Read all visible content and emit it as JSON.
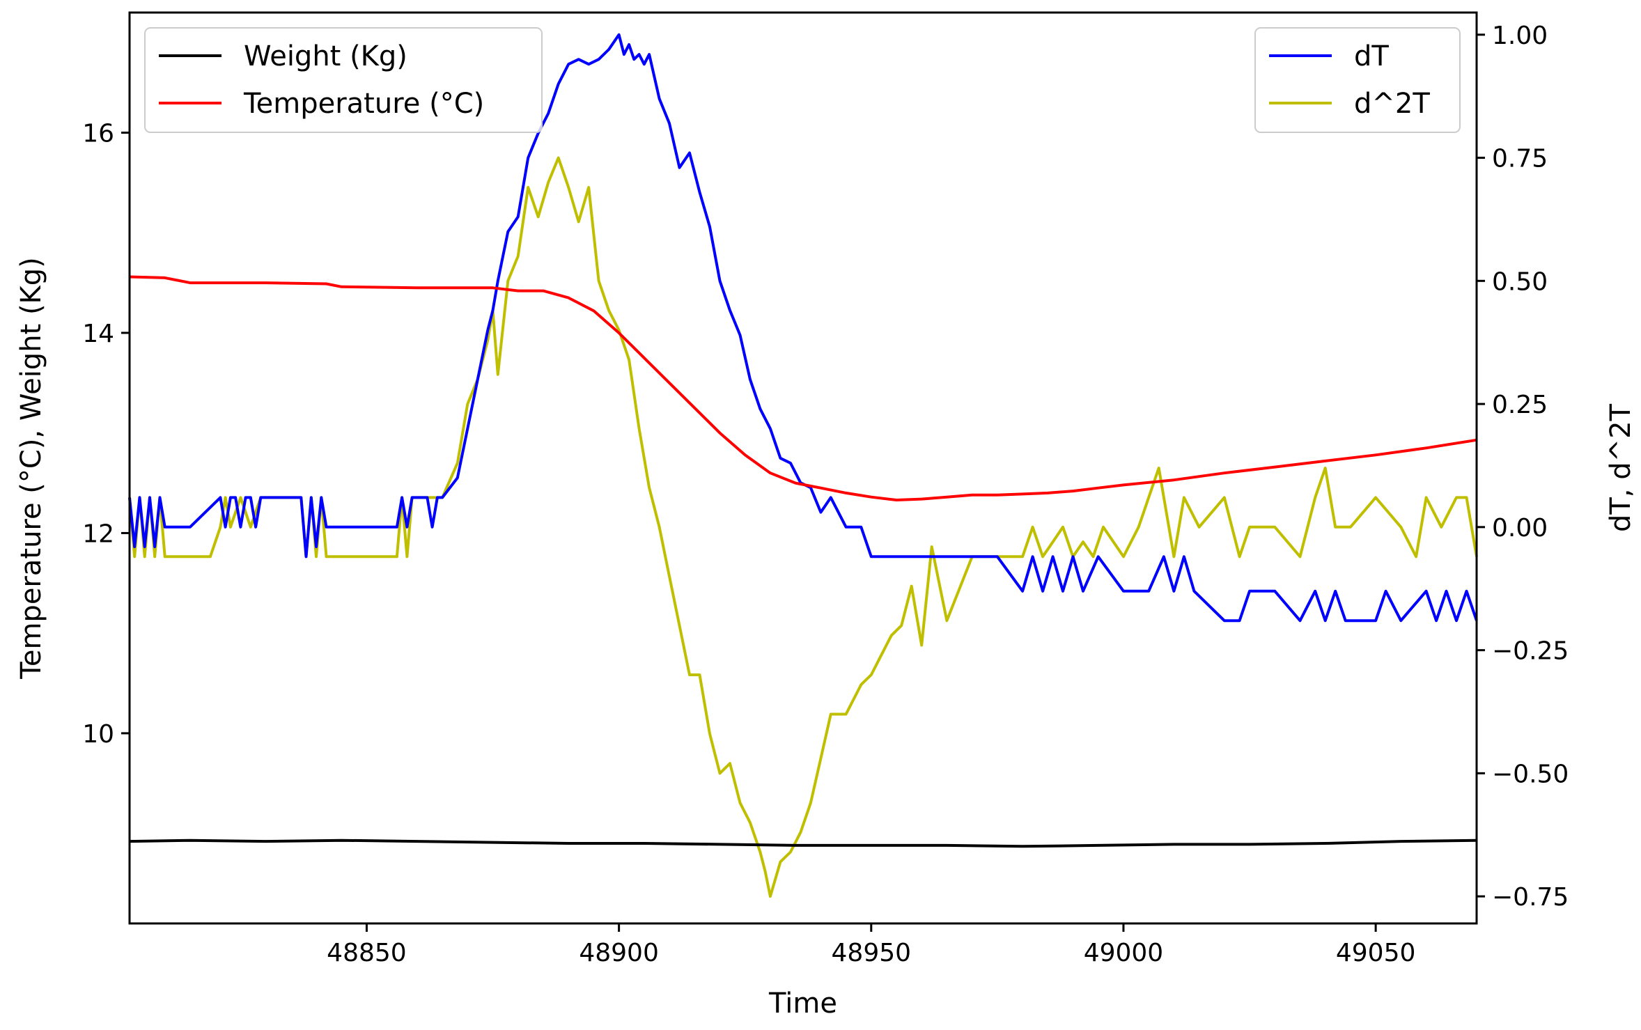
{
  "chart_data": {
    "type": "line",
    "title": "",
    "xlabel": "Time",
    "ylabel_left": "Temperature (°C), Weight (Kg)",
    "ylabel_right": "dT, d^2T",
    "xlim": [
      48803,
      49070
    ],
    "ylim_left": [
      8.1,
      17.2
    ],
    "ylim_right": [
      -0.805,
      1.045
    ],
    "x_ticks": [
      48850,
      48900,
      48950,
      49000,
      49050
    ],
    "x_tick_labels": [
      "48850",
      "48900",
      "48950",
      "49000",
      "49050"
    ],
    "y_left_ticks": [
      10,
      12,
      14,
      16
    ],
    "y_left_tick_labels": [
      "10",
      "12",
      "14",
      "16"
    ],
    "y_right_ticks": [
      -0.75,
      -0.5,
      -0.25,
      0.0,
      0.25,
      0.5,
      0.75,
      1.0
    ],
    "y_right_tick_labels": [
      "−0.75",
      "−0.50",
      "−0.25",
      "0.00",
      "0.25",
      "0.50",
      "0.75",
      "1.00"
    ],
    "grid": false,
    "legend_left": {
      "placement": "top-left",
      "entries": [
        {
          "label": "Weight (Kg)",
          "color": "#000000"
        },
        {
          "label": "Temperature (°C)",
          "color": "#ff0000"
        }
      ]
    },
    "legend_right": {
      "placement": "top-right",
      "entries": [
        {
          "label": "dT",
          "color": "#0000ff"
        },
        {
          "label": "d^2T",
          "color": "#bfbf00"
        }
      ]
    },
    "series": [
      {
        "name": "Weight (Kg)",
        "axis": "left",
        "color": "#000000",
        "x": [
          48803,
          48815,
          48830,
          48845,
          48860,
          48875,
          48890,
          48905,
          48920,
          48935,
          48950,
          48965,
          48980,
          48995,
          49010,
          49025,
          49040,
          49055,
          49070
        ],
        "y": [
          8.92,
          8.93,
          8.92,
          8.93,
          8.92,
          8.91,
          8.9,
          8.9,
          8.89,
          8.88,
          8.88,
          8.88,
          8.87,
          8.88,
          8.89,
          8.89,
          8.9,
          8.92,
          8.93
        ]
      },
      {
        "name": "Temperature (°C)",
        "axis": "left",
        "color": "#ff0000",
        "x": [
          48803,
          48810,
          48815,
          48830,
          48842,
          48845,
          48860,
          48875,
          48880,
          48885,
          48890,
          48895,
          48900,
          48905,
          48910,
          48915,
          48920,
          48925,
          48930,
          48935,
          48940,
          48945,
          48950,
          48955,
          48960,
          48965,
          48970,
          48975,
          48980,
          48985,
          48990,
          48995,
          49000,
          49010,
          49020,
          49030,
          49040,
          49050,
          49060,
          49070
        ],
        "y": [
          14.56,
          14.55,
          14.5,
          14.5,
          14.49,
          14.46,
          14.45,
          14.45,
          14.42,
          14.42,
          14.35,
          14.22,
          14.0,
          13.75,
          13.5,
          13.25,
          13.0,
          12.78,
          12.6,
          12.5,
          12.45,
          12.4,
          12.36,
          12.33,
          12.34,
          12.36,
          12.38,
          12.38,
          12.39,
          12.4,
          12.42,
          12.45,
          12.48,
          12.53,
          12.6,
          12.66,
          12.72,
          12.78,
          12.85,
          12.93
        ]
      },
      {
        "name": "dT",
        "axis": "right",
        "color": "#0000ff",
        "x": [
          48803,
          48804,
          48805,
          48806,
          48807,
          48808,
          48809,
          48810,
          48815,
          48821,
          48822,
          48823,
          48824,
          48825,
          48826,
          48827,
          48828,
          48829,
          48830,
          48837,
          48838,
          48839,
          48840,
          48841,
          48842,
          48856,
          48857,
          48858,
          48859,
          48860,
          48861,
          48862,
          48863,
          48864,
          48865,
          48868,
          48870,
          48872,
          48874,
          48875,
          48876,
          48878,
          48880,
          48882,
          48884,
          48886,
          48888,
          48890,
          48892,
          48894,
          48896,
          48898,
          48900,
          48901,
          48902,
          48903,
          48904,
          48905,
          48906,
          48908,
          48910,
          48912,
          48914,
          48916,
          48918,
          48920,
          48922,
          48924,
          48926,
          48928,
          48930,
          48932,
          48934,
          48936,
          48938,
          48940,
          48942,
          48945,
          48948,
          48950,
          48952,
          48954,
          48956,
          48958,
          48960,
          48962,
          48964,
          48970,
          48975,
          48980,
          48982,
          48984,
          48986,
          48988,
          48990,
          48992,
          48995,
          49000,
          49005,
          49008,
          49010,
          49012,
          49014,
          49020,
          49023,
          49025,
          49030,
          49035,
          49038,
          49040,
          49042,
          49044,
          49050,
          49052,
          49055,
          49060,
          49062,
          49064,
          49066,
          49068,
          49070
        ],
        "y": [
          0.06,
          -0.04,
          0.06,
          -0.04,
          0.06,
          -0.04,
          0.06,
          0.0,
          0.0,
          0.06,
          0.0,
          0.06,
          0.06,
          0.0,
          0.06,
          0.06,
          0.0,
          0.06,
          0.06,
          0.06,
          -0.06,
          0.06,
          -0.04,
          0.06,
          0.0,
          0.0,
          0.06,
          0.0,
          0.06,
          0.06,
          0.06,
          0.06,
          0.0,
          0.06,
          0.06,
          0.1,
          0.2,
          0.3,
          0.4,
          0.44,
          0.5,
          0.6,
          0.63,
          0.75,
          0.8,
          0.84,
          0.9,
          0.94,
          0.95,
          0.94,
          0.95,
          0.97,
          1.0,
          0.96,
          0.98,
          0.95,
          0.96,
          0.94,
          0.96,
          0.87,
          0.82,
          0.73,
          0.76,
          0.68,
          0.61,
          0.5,
          0.44,
          0.39,
          0.3,
          0.24,
          0.2,
          0.14,
          0.13,
          0.09,
          0.08,
          0.03,
          0.06,
          0.0,
          0.0,
          -0.06,
          -0.06,
          -0.06,
          -0.06,
          -0.06,
          -0.06,
          -0.06,
          -0.06,
          -0.06,
          -0.06,
          -0.13,
          -0.06,
          -0.13,
          -0.06,
          -0.13,
          -0.06,
          -0.13,
          -0.06,
          -0.13,
          -0.13,
          -0.06,
          -0.13,
          -0.06,
          -0.13,
          -0.19,
          -0.19,
          -0.13,
          -0.13,
          -0.19,
          -0.13,
          -0.19,
          -0.13,
          -0.19,
          -0.19,
          -0.13,
          -0.19,
          -0.13,
          -0.19,
          -0.13,
          -0.19,
          -0.13,
          -0.19
        ]
      },
      {
        "name": "d^2T",
        "axis": "right",
        "color": "#bfbf00",
        "x": [
          48803,
          48804,
          48805,
          48806,
          48807,
          48808,
          48809,
          48810,
          48815,
          48819,
          48821,
          48822,
          48823,
          48825,
          48827,
          48829,
          48831,
          48837,
          48838,
          48839,
          48840,
          48841,
          48842,
          48856,
          48857,
          48858,
          48859,
          48860,
          48862,
          48865,
          48868,
          48870,
          48872,
          48874,
          48875,
          48876,
          48878,
          48880,
          48882,
          48884,
          48886,
          48888,
          48890,
          48892,
          48894,
          48896,
          48898,
          48900,
          48902,
          48904,
          48906,
          48908,
          48910,
          48912,
          48914,
          48916,
          48918,
          48920,
          48922,
          48924,
          48926,
          48928,
          48929,
          48930,
          48932,
          48934,
          48936,
          48938,
          48940,
          48942,
          48945,
          48948,
          48950,
          48952,
          48954,
          48956,
          48958,
          48960,
          48962,
          48965,
          48970,
          48975,
          48980,
          48982,
          48984,
          48986,
          48988,
          48990,
          48992,
          48994,
          48996,
          49000,
          49003,
          49005,
          49007,
          49010,
          49012,
          49015,
          49020,
          49023,
          49025,
          49030,
          49035,
          49038,
          49040,
          49042,
          49045,
          49050,
          49055,
          49058,
          49060,
          49063,
          49066,
          49068,
          49070
        ],
        "y": [
          0.06,
          -0.06,
          0.06,
          -0.06,
          0.06,
          -0.06,
          0.06,
          -0.06,
          -0.06,
          -0.06,
          0.0,
          0.06,
          0.0,
          0.06,
          0.0,
          0.06,
          0.06,
          0.06,
          -0.06,
          0.06,
          -0.06,
          0.06,
          -0.06,
          -0.06,
          0.06,
          -0.06,
          0.06,
          0.06,
          0.06,
          0.06,
          0.13,
          0.25,
          0.3,
          0.38,
          0.44,
          0.31,
          0.5,
          0.55,
          0.69,
          0.63,
          0.7,
          0.75,
          0.69,
          0.62,
          0.69,
          0.5,
          0.44,
          0.4,
          0.34,
          0.2,
          0.08,
          0.0,
          -0.1,
          -0.2,
          -0.3,
          -0.3,
          -0.42,
          -0.5,
          -0.48,
          -0.56,
          -0.6,
          -0.66,
          -0.7,
          -0.75,
          -0.68,
          -0.66,
          -0.62,
          -0.56,
          -0.47,
          -0.38,
          -0.38,
          -0.32,
          -0.3,
          -0.26,
          -0.22,
          -0.2,
          -0.12,
          -0.24,
          -0.04,
          -0.19,
          -0.06,
          -0.06,
          -0.06,
          0.0,
          -0.06,
          -0.03,
          0.0,
          -0.06,
          -0.03,
          -0.06,
          0.0,
          -0.06,
          0.0,
          0.06,
          0.12,
          -0.06,
          0.06,
          0.0,
          0.06,
          -0.06,
          0.0,
          0.0,
          -0.06,
          0.06,
          0.12,
          0.0,
          0.0,
          0.06,
          0.0,
          -0.06,
          0.06,
          0.0,
          0.06,
          0.06,
          -0.06
        ]
      }
    ]
  }
}
